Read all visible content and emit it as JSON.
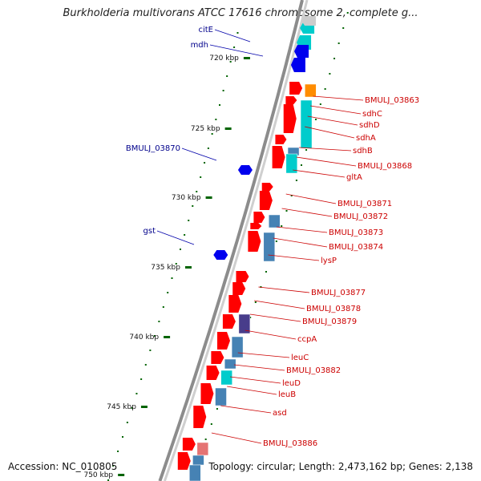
{
  "title": "Burkholderia multivorans ATCC 17616 chromosome 2, complete g...",
  "accession_text": "Accession: NC_010805",
  "summary_text": "Topology: circular; Length: 2,473,162 bp; Genes: 2,138",
  "colors": {
    "backbone": "#8c8c8c",
    "forward_gene": "#ff0000",
    "forward_label": "#cc0000",
    "reverse_gene": "#0000ee",
    "reverse_label": "#00008b",
    "cyan_gene": "#00cccc",
    "steel_gene": "#4682b4",
    "orange_gene": "#ff8c00",
    "tick": "#006400",
    "pink_gene": "#e57373",
    "purple_gene": "#483d8b"
  },
  "scale_ticks": [
    {
      "label": "720 kbp"
    },
    {
      "label": "725 kbp"
    },
    {
      "label": "730 kbp"
    },
    {
      "label": "735 kbp"
    },
    {
      "label": "740 kbp"
    },
    {
      "label": "745 kbp"
    },
    {
      "label": "750 kbp"
    }
  ],
  "forward_labels": [
    "BMULJ_03863",
    "sdhC",
    "sdhD",
    "sdhA",
    "sdhB",
    "BMULJ_03868",
    "gltA",
    "BMULJ_03871",
    "BMULJ_03872",
    "BMULJ_03873",
    "BMULJ_03874",
    "lysP",
    "BMULJ_03877",
    "BMULJ_03878",
    "BMULJ_03879",
    "ccpA",
    "leuC",
    "BMULJ_03882",
    "leuD",
    "leuB",
    "asd",
    "BMULJ_03886"
  ],
  "reverse_labels": [
    "citE",
    "mdh",
    "BMULJ_03870",
    "gst"
  ]
}
